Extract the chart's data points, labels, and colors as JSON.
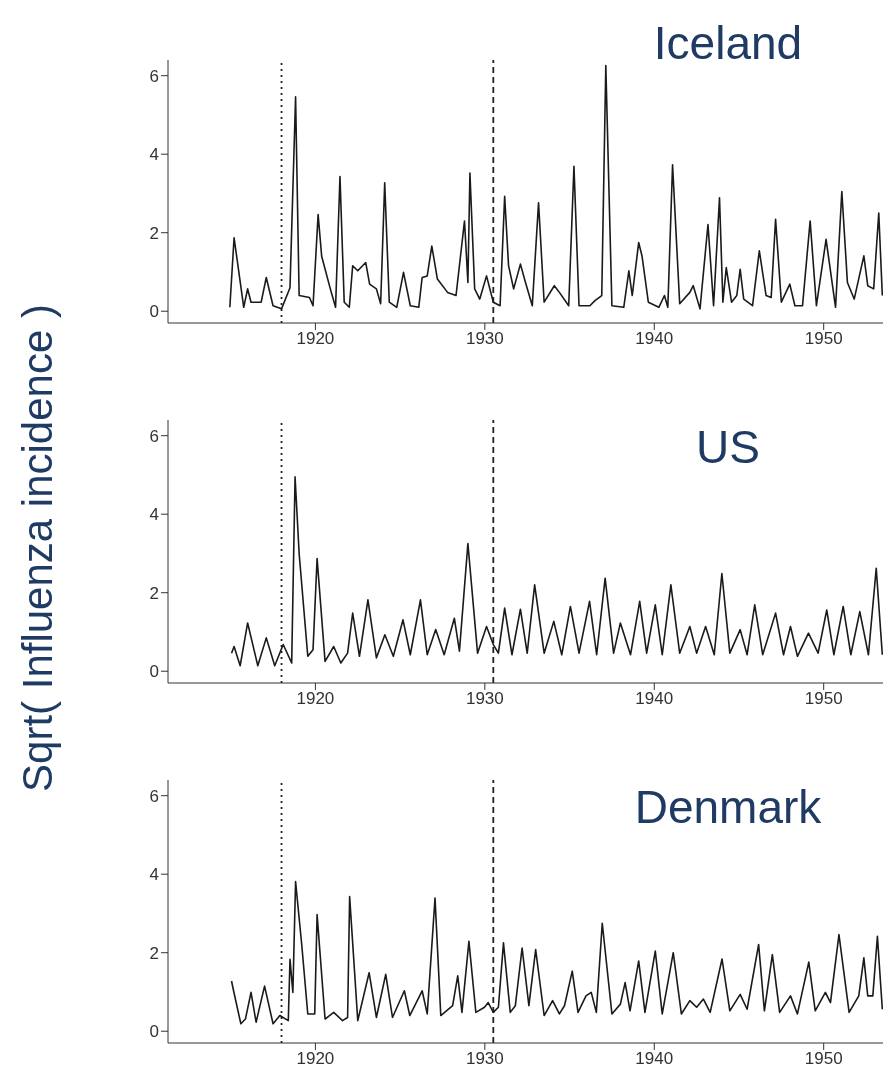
{
  "chart_data": [
    {
      "type": "line",
      "title": "Iceland",
      "xlim": [
        1911.3,
        1953.5
      ],
      "xticks": [
        1920,
        1930,
        1940,
        1950
      ],
      "ylim": [
        -0.3,
        6.4
      ],
      "yticks": [
        0,
        2,
        4,
        6
      ],
      "marker": "none",
      "line_style": "solid",
      "ref_lines": [
        {
          "axis": "x",
          "value": 1918,
          "line_style": "dotted",
          "color": "#222222"
        },
        {
          "axis": "x",
          "value": 1930.5,
          "line_style": "dashed",
          "color": "#222222"
        }
      ],
      "x": [
        1914.95,
        1915.2,
        1915.77,
        1916.0,
        1916.2,
        1916.8,
        1917.1,
        1917.5,
        1918.0,
        1918.5,
        1918.83,
        1919.04,
        1919.65,
        1919.86,
        1920.16,
        1920.37,
        1920.88,
        1921.19,
        1921.45,
        1921.7,
        1922.0,
        1922.2,
        1922.5,
        1922.97,
        1923.2,
        1923.6,
        1923.85,
        1924.09,
        1924.36,
        1924.8,
        1925.2,
        1925.6,
        1926.1,
        1926.3,
        1926.6,
        1926.87,
        1927.2,
        1927.8,
        1928.3,
        1928.8,
        1929.0,
        1929.12,
        1929.4,
        1929.7,
        1930.1,
        1930.5,
        1930.9,
        1931.17,
        1931.4,
        1931.7,
        1932.1,
        1932.4,
        1932.8,
        1933.17,
        1933.5,
        1934.1,
        1934.4,
        1934.95,
        1935.26,
        1935.56,
        1936.2,
        1936.5,
        1936.9,
        1937.14,
        1937.5,
        1938.2,
        1938.5,
        1938.7,
        1939.08,
        1939.28,
        1939.65,
        1940.27,
        1940.6,
        1940.8,
        1941.08,
        1941.5,
        1942.1,
        1942.3,
        1942.7,
        1943.17,
        1943.5,
        1943.85,
        1944.05,
        1944.25,
        1944.56,
        1944.87,
        1945.07,
        1945.28,
        1945.8,
        1946.2,
        1946.6,
        1946.9,
        1947.16,
        1947.5,
        1948.0,
        1948.3,
        1948.75,
        1949.2,
        1949.57,
        1950.14,
        1950.7,
        1951.07,
        1951.4,
        1951.8,
        1952.37,
        1952.6,
        1952.95,
        1953.25,
        1953.46
      ],
      "series": [
        {
          "color": "#1a1a1a",
          "values": [
            0.1,
            1.87,
            0.1,
            0.57,
            0.23,
            0.23,
            0.86,
            0.14,
            0.06,
            0.6,
            5.46,
            0.4,
            0.35,
            0.14,
            2.46,
            1.4,
            0.57,
            0.1,
            3.43,
            0.23,
            0.1,
            1.16,
            1.03,
            1.24,
            0.69,
            0.57,
            0.19,
            3.27,
            0.23,
            0.1,
            0.99,
            0.14,
            0.1,
            0.86,
            0.9,
            1.66,
            0.82,
            0.48,
            0.4,
            2.3,
            0.73,
            3.52,
            0.57,
            0.31,
            0.9,
            0.23,
            0.14,
            2.93,
            1.16,
            0.57,
            1.2,
            0.73,
            0.14,
            2.76,
            0.23,
            0.65,
            0.48,
            0.14,
            3.69,
            0.14,
            0.14,
            0.27,
            0.4,
            6.26,
            0.14,
            0.1,
            1.03,
            0.4,
            1.75,
            1.4,
            0.23,
            0.1,
            0.4,
            0.1,
            3.73,
            0.19,
            0.48,
            0.65,
            0.06,
            2.21,
            0.14,
            2.89,
            0.23,
            1.11,
            0.23,
            0.4,
            1.07,
            0.31,
            0.14,
            1.54,
            0.4,
            0.35,
            2.34,
            0.23,
            0.69,
            0.14,
            0.14,
            2.3,
            0.14,
            1.83,
            0.1,
            3.05,
            0.73,
            0.31,
            1.41,
            0.65,
            0.57,
            2.5,
            0.4
          ]
        }
      ]
    },
    {
      "type": "line",
      "title": "US",
      "ylabel": "Sqrt( Influenza incidence )",
      "xlim": [
        1911.3,
        1953.5
      ],
      "xticks": [
        1920,
        1930,
        1940,
        1950
      ],
      "ylim": [
        -0.3,
        6.4
      ],
      "yticks": [
        0,
        2,
        4,
        6
      ],
      "marker": "none",
      "line_style": "solid",
      "ref_lines": [
        {
          "axis": "x",
          "value": 1918,
          "line_style": "dotted",
          "color": "#222222"
        },
        {
          "axis": "x",
          "value": 1930.5,
          "line_style": "dashed",
          "color": "#222222"
        }
      ],
      "x": [
        1915.05,
        1915.2,
        1915.56,
        1916.0,
        1916.6,
        1917.1,
        1917.6,
        1918.1,
        1918.6,
        1918.8,
        1919.04,
        1919.55,
        1919.86,
        1920.1,
        1920.57,
        1921.08,
        1921.5,
        1921.9,
        1922.2,
        1922.6,
        1923.1,
        1923.6,
        1924.1,
        1924.6,
        1925.17,
        1925.6,
        1926.2,
        1926.6,
        1927.1,
        1927.6,
        1928.2,
        1928.5,
        1929.0,
        1929.57,
        1930.1,
        1930.5,
        1930.8,
        1931.17,
        1931.6,
        1932.1,
        1932.5,
        1932.94,
        1933.5,
        1934.07,
        1934.54,
        1935.05,
        1935.56,
        1936.18,
        1936.6,
        1937.1,
        1937.6,
        1938.0,
        1938.6,
        1939.14,
        1939.55,
        1940.06,
        1940.47,
        1940.98,
        1941.5,
        1942.1,
        1942.5,
        1943.03,
        1943.54,
        1943.99,
        1944.46,
        1945.07,
        1945.48,
        1945.93,
        1946.4,
        1947.16,
        1947.63,
        1948.04,
        1948.45,
        1949.1,
        1949.67,
        1950.18,
        1950.6,
        1951.15,
        1951.6,
        1952.13,
        1952.64,
        1953.1,
        1953.46
      ],
      "series": [
        {
          "color": "#1a1a1a",
          "values": [
            0.46,
            0.63,
            0.14,
            1.23,
            0.14,
            0.85,
            0.14,
            0.68,
            0.21,
            4.95,
            3.0,
            0.38,
            0.55,
            2.87,
            0.25,
            0.63,
            0.21,
            0.46,
            1.48,
            0.38,
            1.82,
            0.34,
            0.93,
            0.38,
            1.31,
            0.42,
            1.82,
            0.42,
            1.06,
            0.42,
            1.35,
            0.51,
            3.25,
            0.46,
            1.14,
            0.68,
            0.46,
            1.61,
            0.42,
            1.58,
            0.46,
            2.2,
            0.46,
            1.27,
            0.42,
            1.65,
            0.46,
            1.78,
            0.42,
            2.37,
            0.46,
            1.23,
            0.42,
            1.78,
            0.46,
            1.69,
            0.42,
            2.2,
            0.46,
            1.14,
            0.46,
            1.14,
            0.42,
            2.49,
            0.46,
            1.06,
            0.42,
            1.69,
            0.42,
            1.48,
            0.42,
            1.14,
            0.38,
            0.97,
            0.46,
            1.56,
            0.42,
            1.65,
            0.42,
            1.52,
            0.42,
            2.62,
            0.42
          ]
        }
      ]
    },
    {
      "type": "line",
      "title": "Denmark",
      "xlim": [
        1911.3,
        1953.5
      ],
      "xticks": [
        1920,
        1930,
        1940,
        1950
      ],
      "ylim": [
        -0.3,
        6.4
      ],
      "yticks": [
        0,
        2,
        4,
        6
      ],
      "marker": "none",
      "line_style": "solid",
      "ref_lines": [
        {
          "axis": "x",
          "value": 1918,
          "line_style": "dotted",
          "color": "#222222"
        },
        {
          "axis": "x",
          "value": 1930.5,
          "line_style": "dashed",
          "color": "#222222"
        }
      ],
      "x": [
        1915.05,
        1915.15,
        1915.6,
        1915.87,
        1916.2,
        1916.5,
        1917.0,
        1917.5,
        1917.9,
        1918.4,
        1918.5,
        1918.67,
        1918.83,
        1919.2,
        1919.55,
        1919.96,
        1920.1,
        1920.57,
        1921.08,
        1921.6,
        1921.9,
        1922.02,
        1922.5,
        1923.17,
        1923.6,
        1924.15,
        1924.55,
        1925.25,
        1925.57,
        1926.3,
        1926.6,
        1927.06,
        1927.4,
        1928.1,
        1928.4,
        1928.65,
        1929.06,
        1929.47,
        1929.98,
        1930.2,
        1930.5,
        1930.8,
        1931.1,
        1931.5,
        1931.8,
        1932.2,
        1932.6,
        1933.0,
        1933.5,
        1934.0,
        1934.4,
        1934.7,
        1935.16,
        1935.5,
        1935.97,
        1936.28,
        1936.58,
        1936.93,
        1937.5,
        1938.0,
        1938.28,
        1938.57,
        1939.08,
        1939.45,
        1940.06,
        1940.47,
        1941.12,
        1941.6,
        1942.1,
        1942.5,
        1942.9,
        1943.3,
        1944.0,
        1944.46,
        1945.07,
        1945.48,
        1946.16,
        1946.5,
        1946.97,
        1947.4,
        1948.04,
        1948.45,
        1949.12,
        1949.5,
        1950.1,
        1950.4,
        1950.9,
        1951.5,
        1952.07,
        1952.37,
        1952.6,
        1952.9,
        1953.17,
        1953.46
      ],
      "series": [
        {
          "color": "#1a1a1a",
          "values": [
            1.28,
            1.07,
            0.19,
            0.31,
            0.99,
            0.23,
            1.15,
            0.19,
            0.4,
            0.27,
            1.83,
            0.99,
            3.81,
            2.17,
            0.44,
            0.44,
            2.97,
            0.31,
            0.48,
            0.27,
            0.35,
            3.43,
            0.27,
            1.49,
            0.35,
            1.45,
            0.35,
            1.03,
            0.4,
            1.03,
            0.44,
            3.39,
            0.4,
            0.65,
            1.41,
            0.48,
            2.29,
            0.48,
            0.61,
            0.73,
            0.48,
            0.61,
            2.25,
            0.48,
            0.65,
            2.12,
            0.65,
            2.08,
            0.4,
            0.78,
            0.44,
            0.65,
            1.53,
            0.48,
            0.9,
            0.99,
            0.48,
            2.75,
            0.44,
            0.69,
            1.24,
            0.52,
            1.79,
            0.48,
            2.04,
            0.44,
            2.0,
            0.44,
            0.78,
            0.61,
            0.82,
            0.48,
            1.84,
            0.52,
            0.94,
            0.56,
            2.21,
            0.52,
            1.95,
            0.48,
            0.9,
            0.44,
            1.76,
            0.52,
            0.99,
            0.73,
            2.46,
            0.48,
            0.9,
            1.87,
            0.9,
            0.9,
            2.42,
            0.56
          ]
        }
      ]
    }
  ]
}
